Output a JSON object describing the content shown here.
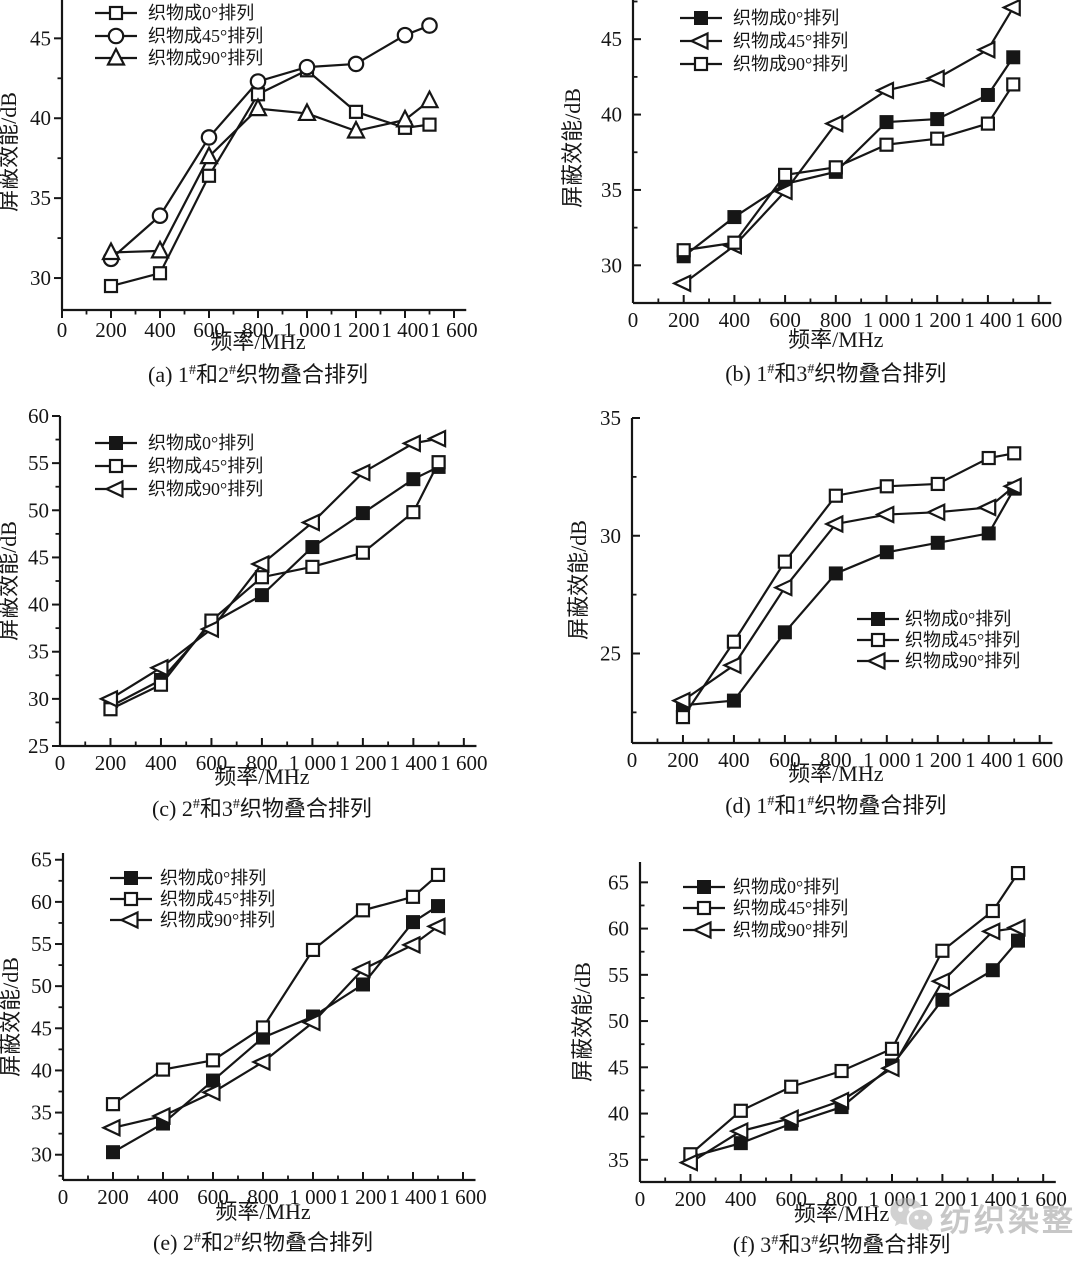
{
  "figure": {
    "ink_color": "#161616",
    "background_color": "#ffffff"
  },
  "watermark": {
    "icon": "wechat-logo-icon",
    "text": "纺织染整",
    "color": "#a5a5a5"
  },
  "chart_data": [
    {
      "id": "a",
      "type": "line",
      "caption": "(a) 1#和2#织物叠合排列",
      "caption_rich": [
        [
          "(a) 1",
          0
        ],
        [
          "#",
          1
        ],
        [
          "和2",
          0
        ],
        [
          "#",
          1
        ],
        [
          "织物叠合排列",
          0
        ]
      ],
      "xlabel": "频率/MHz",
      "ylabel": "屏蔽效能/dB",
      "x": [
        200,
        400,
        600,
        800,
        1000,
        1200,
        1400,
        1500
      ],
      "xticks": [
        0,
        200,
        400,
        600,
        800,
        1000,
        1200,
        1400,
        1600
      ],
      "xtick_labels": [
        "0",
        "200",
        "400",
        "600",
        "800",
        "1 000",
        "1 200",
        "1 400",
        "1 600"
      ],
      "xlim": [
        0,
        1650
      ],
      "ylim": [
        28,
        47.4
      ],
      "yticks": [
        30,
        35,
        40,
        45
      ],
      "grid": false,
      "legend_pos": "top-left",
      "series": [
        {
          "name": "织物成0°排列",
          "marker": "square-open",
          "values": [
            29.5,
            30.3,
            36.4,
            41.5,
            43.0,
            40.4,
            39.4,
            39.6
          ]
        },
        {
          "name": "织物成45°排列",
          "marker": "circle-open",
          "values": [
            31.2,
            33.9,
            38.8,
            42.3,
            43.2,
            43.4,
            45.2,
            45.8
          ]
        },
        {
          "name": "织物成90°排列",
          "marker": "triangle-up-open",
          "values": [
            31.6,
            31.7,
            37.6,
            40.6,
            40.3,
            39.2,
            39.9,
            41.1
          ]
        }
      ]
    },
    {
      "id": "b",
      "type": "line",
      "caption": "(b) 1#和3#织物叠合排列",
      "caption_rich": [
        [
          "(b) 1",
          0
        ],
        [
          "#",
          1
        ],
        [
          "和3",
          0
        ],
        [
          "#",
          1
        ],
        [
          "织物叠合排列",
          0
        ]
      ],
      "xlabel": "频率/MHz",
      "ylabel": "屏蔽效能/dB",
      "x": [
        200,
        400,
        600,
        800,
        1000,
        1200,
        1400,
        1500
      ],
      "xticks": [
        0,
        200,
        400,
        600,
        800,
        1000,
        1200,
        1400,
        1600
      ],
      "xtick_labels": [
        "0",
        "200",
        "400",
        "600",
        "800",
        "1 000",
        "1 200",
        "1 400",
        "1 600"
      ],
      "xlim": [
        0,
        1650
      ],
      "ylim": [
        27.5,
        47.6
      ],
      "yticks": [
        30,
        35,
        40,
        45
      ],
      "grid": false,
      "legend_pos": "top-left",
      "series": [
        {
          "name": "织物成0°排列",
          "marker": "square-filled",
          "values": [
            30.6,
            33.2,
            35.4,
            36.2,
            39.5,
            39.7,
            41.3,
            43.8
          ]
        },
        {
          "name": "织物成45°排列",
          "marker": "triangle-left-open",
          "values": [
            28.8,
            31.3,
            34.9,
            39.4,
            41.6,
            42.4,
            44.3,
            47.1
          ]
        },
        {
          "name": "织物成90°排列",
          "marker": "square-open",
          "values": [
            31.0,
            31.5,
            36.0,
            36.5,
            38.0,
            38.4,
            39.4,
            42.0
          ]
        }
      ]
    },
    {
      "id": "c",
      "type": "line",
      "caption": "(c) 2#和3#织物叠合排列",
      "caption_rich": [
        [
          "(c) 2",
          0
        ],
        [
          "#",
          1
        ],
        [
          "和3",
          0
        ],
        [
          "#",
          1
        ],
        [
          "织物叠合排列",
          0
        ]
      ],
      "xlabel": "频率/MHz",
      "ylabel": "屏蔽效能/dB",
      "x": [
        200,
        400,
        600,
        800,
        1000,
        1200,
        1400,
        1500
      ],
      "xticks": [
        0,
        200,
        400,
        600,
        800,
        1000,
        1200,
        1400,
        1600
      ],
      "xtick_labels": [
        "0",
        "200",
        "400",
        "600",
        "800",
        "1 000",
        "1 200",
        "1 400",
        "1 600"
      ],
      "xlim": [
        0,
        1650
      ],
      "ylim": [
        25,
        60
      ],
      "yticks": [
        25,
        30,
        35,
        40,
        45,
        50,
        55,
        60
      ],
      "grid": false,
      "legend_pos": "top-left",
      "series": [
        {
          "name": "织物成0°排列",
          "marker": "square-filled",
          "values": [
            29.2,
            32.0,
            38.0,
            41.0,
            46.1,
            49.7,
            53.3,
            54.6
          ]
        },
        {
          "name": "织物成45°排列",
          "marker": "square-open",
          "values": [
            28.9,
            31.5,
            38.3,
            42.9,
            44.0,
            45.5,
            49.8,
            55.1
          ]
        },
        {
          "name": "织物成90°排列",
          "marker": "triangle-left-open",
          "values": [
            30.0,
            33.3,
            37.4,
            44.3,
            48.7,
            54.0,
            57.1,
            57.6
          ]
        }
      ]
    },
    {
      "id": "d",
      "type": "line",
      "caption": "(d) 1#和1#织物叠合排列",
      "caption_rich": [
        [
          "(d) 1",
          0
        ],
        [
          "#",
          1
        ],
        [
          "和1",
          0
        ],
        [
          "#",
          1
        ],
        [
          "织物叠合排列",
          0
        ]
      ],
      "xlabel": "频率/MHz",
      "ylabel": "屏蔽效能/dB",
      "x": [
        200,
        400,
        600,
        800,
        1000,
        1200,
        1400,
        1500
      ],
      "xticks": [
        0,
        200,
        400,
        600,
        800,
        1000,
        1200,
        1400,
        1600
      ],
      "xtick_labels": [
        "0",
        "200",
        "400",
        "600",
        "800",
        "1 000",
        "1 200",
        "1 400",
        "1 600"
      ],
      "xlim": [
        0,
        1650
      ],
      "ylim": [
        21.2,
        35
      ],
      "yticks": [
        25,
        30,
        35
      ],
      "grid": false,
      "legend_pos": "middle-right",
      "series": [
        {
          "name": "织物成0°排列",
          "marker": "square-filled",
          "values": [
            22.8,
            23.0,
            25.9,
            28.4,
            29.3,
            29.7,
            30.1,
            32.0
          ]
        },
        {
          "name": "织物成45°排列",
          "marker": "square-open",
          "values": [
            22.3,
            25.5,
            28.9,
            31.7,
            32.1,
            32.2,
            33.3,
            33.5
          ]
        },
        {
          "name": "织物成90°排列",
          "marker": "triangle-left-open",
          "values": [
            23.0,
            24.5,
            27.8,
            30.5,
            30.9,
            31.0,
            31.2,
            32.1
          ]
        }
      ]
    },
    {
      "id": "e",
      "type": "line",
      "caption": "(e) 2#和2#织物叠合排列",
      "caption_rich": [
        [
          "(e) 2",
          0
        ],
        [
          "#",
          1
        ],
        [
          "和2",
          0
        ],
        [
          "#",
          1
        ],
        [
          "织物叠合排列",
          0
        ]
      ],
      "xlabel": "频率/MHz",
      "ylabel": "屏蔽效能/dB",
      "x": [
        200,
        400,
        600,
        800,
        1000,
        1200,
        1400,
        1500
      ],
      "xticks": [
        0,
        200,
        400,
        600,
        800,
        1000,
        1200,
        1400,
        1600
      ],
      "xtick_labels": [
        "0",
        "200",
        "400",
        "600",
        "800",
        "1 000",
        "1 200",
        "1 400",
        "1 600"
      ],
      "xlim": [
        0,
        1650
      ],
      "ylim": [
        27,
        65.8
      ],
      "yticks": [
        30,
        35,
        40,
        45,
        50,
        55,
        60,
        65
      ],
      "grid": false,
      "legend_pos": "top-left",
      "series": [
        {
          "name": "织物成0°排列",
          "marker": "square-filled",
          "values": [
            30.3,
            33.7,
            38.8,
            43.9,
            46.4,
            50.2,
            57.6,
            59.5
          ]
        },
        {
          "name": "织物成45°排列",
          "marker": "square-open",
          "values": [
            36.0,
            40.1,
            41.2,
            45.1,
            54.3,
            59.0,
            60.6,
            63.2
          ]
        },
        {
          "name": "织物成90°排列",
          "marker": "triangle-left-open",
          "values": [
            33.2,
            34.6,
            37.4,
            41.0,
            45.7,
            52.0,
            54.9,
            57.1
          ]
        }
      ]
    },
    {
      "id": "f",
      "type": "line",
      "caption": "(f) 3#和3#织物叠合排列",
      "caption_rich": [
        [
          "(f) 3",
          0
        ],
        [
          "#",
          1
        ],
        [
          "和3",
          0
        ],
        [
          "#",
          1
        ],
        [
          "织物叠合排列",
          0
        ]
      ],
      "xlabel": "频率/MHz",
      "ylabel": "屏蔽效能/dB",
      "x": [
        200,
        400,
        600,
        800,
        1000,
        1200,
        1400,
        1500
      ],
      "xticks": [
        0,
        200,
        400,
        600,
        800,
        1000,
        1200,
        1400,
        1600
      ],
      "xtick_labels": [
        "0",
        "200",
        "400",
        "600",
        "800",
        "1 000",
        "1 200",
        "1 400",
        "1 600"
      ],
      "xlim": [
        0,
        1650
      ],
      "ylim": [
        32.6,
        67.2
      ],
      "yticks": [
        35,
        40,
        45,
        50,
        55,
        60,
        65
      ],
      "grid": false,
      "legend_pos": "top-left",
      "series": [
        {
          "name": "织物成0°排列",
          "marker": "square-filled",
          "values": [
            35.3,
            36.8,
            38.9,
            40.7,
            45.2,
            52.3,
            55.5,
            58.7
          ]
        },
        {
          "name": "织物成45°排列",
          "marker": "square-open",
          "values": [
            35.6,
            40.3,
            42.9,
            44.6,
            47.0,
            57.6,
            61.9,
            66.0
          ]
        },
        {
          "name": "织物成90°排列",
          "marker": "triangle-left-open",
          "values": [
            34.7,
            38.1,
            39.5,
            41.4,
            44.9,
            54.3,
            59.7,
            60.1
          ]
        }
      ]
    }
  ]
}
